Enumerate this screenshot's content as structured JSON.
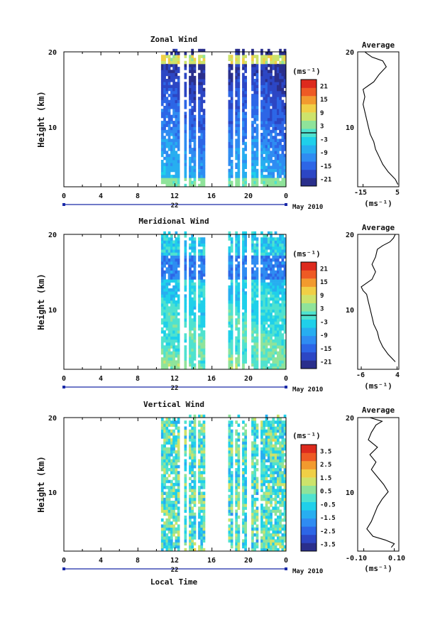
{
  "figure": {
    "x_title": "Local Time",
    "date_label": "May 2010",
    "time_ticks": [
      "0",
      "4",
      "8",
      "12",
      "16",
      "20",
      "0"
    ],
    "unit_label": "(ms⁻¹)",
    "avg_title": "Average",
    "colors": [
      "#2a2f8c",
      "#2c46c4",
      "#2d66e6",
      "#2f8cf2",
      "#27aef0",
      "#1fd0ea",
      "#4fe2cf",
      "#8fe39a",
      "#cde36b",
      "#f0cf46",
      "#f29a2e",
      "#ee5a24",
      "#dd2a1d"
    ]
  },
  "chart_data": [
    {
      "type": "heatmap",
      "title": "Zonal Wind",
      "ylabel": "Height (km)",
      "xlabel": "Local Time",
      "xlim": [
        0,
        24
      ],
      "ylim": [
        2,
        20
      ],
      "yticks": [
        10,
        20
      ],
      "date_day": "22",
      "colorbar_ticks": [
        "21",
        "15",
        "9",
        "3",
        "-3",
        "-9",
        "-15",
        "-21"
      ],
      "colorbar_range": [
        -24,
        24
      ],
      "average": {
        "title": "Average",
        "xlabel": "(ms⁻¹)",
        "xlim": [
          -18,
          5
        ],
        "xtick_labels": [
          "-15",
          "5"
        ],
        "xtick_values": [
          -15,
          5
        ],
        "yticks": [
          10,
          20
        ],
        "profile": [
          [
            2.3,
            4.5
          ],
          [
            3,
            3
          ],
          [
            4,
            -1
          ],
          [
            5,
            -4
          ],
          [
            6,
            -6
          ],
          [
            7,
            -8
          ],
          [
            8,
            -9
          ],
          [
            9,
            -11
          ],
          [
            10,
            -12
          ],
          [
            11,
            -13
          ],
          [
            12,
            -14
          ],
          [
            13,
            -15
          ],
          [
            14,
            -14
          ],
          [
            15,
            -15
          ],
          [
            15.5,
            -12
          ],
          [
            16,
            -9
          ],
          [
            17,
            -6
          ],
          [
            18,
            -2
          ],
          [
            18.8,
            -4
          ],
          [
            19.3,
            -10
          ],
          [
            19.8,
            -13
          ],
          [
            20,
            -14
          ]
        ]
      }
    },
    {
      "type": "heatmap",
      "title": "Meridional Wind",
      "ylabel": "Height (km)",
      "xlabel": "Local Time",
      "xlim": [
        0,
        24
      ],
      "ylim": [
        2,
        20
      ],
      "yticks": [
        10,
        20
      ],
      "date_day": "22",
      "colorbar_ticks": [
        "21",
        "15",
        "9",
        "3",
        "-3",
        "-9",
        "-15",
        "-21"
      ],
      "colorbar_range": [
        -24,
        24
      ],
      "average": {
        "title": "Average",
        "xlabel": "(ms⁻¹)",
        "xlim": [
          -7,
          4.5
        ],
        "xtick_labels": [
          "-6",
          "4"
        ],
        "xtick_values": [
          -6,
          4
        ],
        "yticks": [
          10,
          20
        ],
        "profile": [
          [
            3,
            3.5
          ],
          [
            4,
            1.5
          ],
          [
            5,
            0
          ],
          [
            6,
            -1
          ],
          [
            7,
            -1.5
          ],
          [
            8,
            -2.5
          ],
          [
            9,
            -3
          ],
          [
            10,
            -3.5
          ],
          [
            11,
            -4
          ],
          [
            12,
            -4.5
          ],
          [
            12.5,
            -5.5
          ],
          [
            13,
            -6
          ],
          [
            13.5,
            -4.5
          ],
          [
            14,
            -3
          ],
          [
            15,
            -2
          ],
          [
            16,
            -3
          ],
          [
            17,
            -2
          ],
          [
            18,
            -1.5
          ],
          [
            18.5,
            0
          ],
          [
            19,
            2
          ],
          [
            19.5,
            3
          ],
          [
            20,
            3.5
          ]
        ]
      }
    },
    {
      "type": "heatmap",
      "title": "Vertical Wind",
      "ylabel": "Height (km)",
      "xlabel": "Local Time",
      "xlim": [
        0,
        24
      ],
      "ylim": [
        2,
        20
      ],
      "yticks": [
        10,
        20
      ],
      "date_day": "22",
      "colorbar_ticks": [
        "3.5",
        "2.5",
        "1.5",
        "0.5",
        "-0.5",
        "-1.5",
        "-2.5",
        "-3.5"
      ],
      "colorbar_range": [
        -4,
        4
      ],
      "average": {
        "title": "Average",
        "xlabel": "(ms⁻¹)",
        "xlim": [
          -0.14,
          0.13
        ],
        "xtick_labels": [
          "-0.10",
          "0.10"
        ],
        "xtick_values": [
          -0.1,
          0.1
        ],
        "yticks": [
          10,
          20
        ],
        "profile": [
          [
            2.5,
            0.08
          ],
          [
            3,
            0.1
          ],
          [
            3.5,
            0.04
          ],
          [
            4,
            -0.04
          ],
          [
            5,
            -0.08
          ],
          [
            6,
            -0.05
          ],
          [
            7,
            -0.03
          ],
          [
            8,
            -0.01
          ],
          [
            9,
            0.02
          ],
          [
            10,
            0.06
          ],
          [
            11,
            0.03
          ],
          [
            12,
            -0.01
          ],
          [
            13,
            -0.05
          ],
          [
            14,
            -0.02
          ],
          [
            15,
            -0.06
          ],
          [
            16,
            -0.01
          ],
          [
            17,
            -0.07
          ],
          [
            18,
            -0.05
          ],
          [
            19,
            -0.02
          ],
          [
            19.5,
            0.02
          ],
          [
            20,
            -0.06
          ]
        ]
      }
    }
  ]
}
